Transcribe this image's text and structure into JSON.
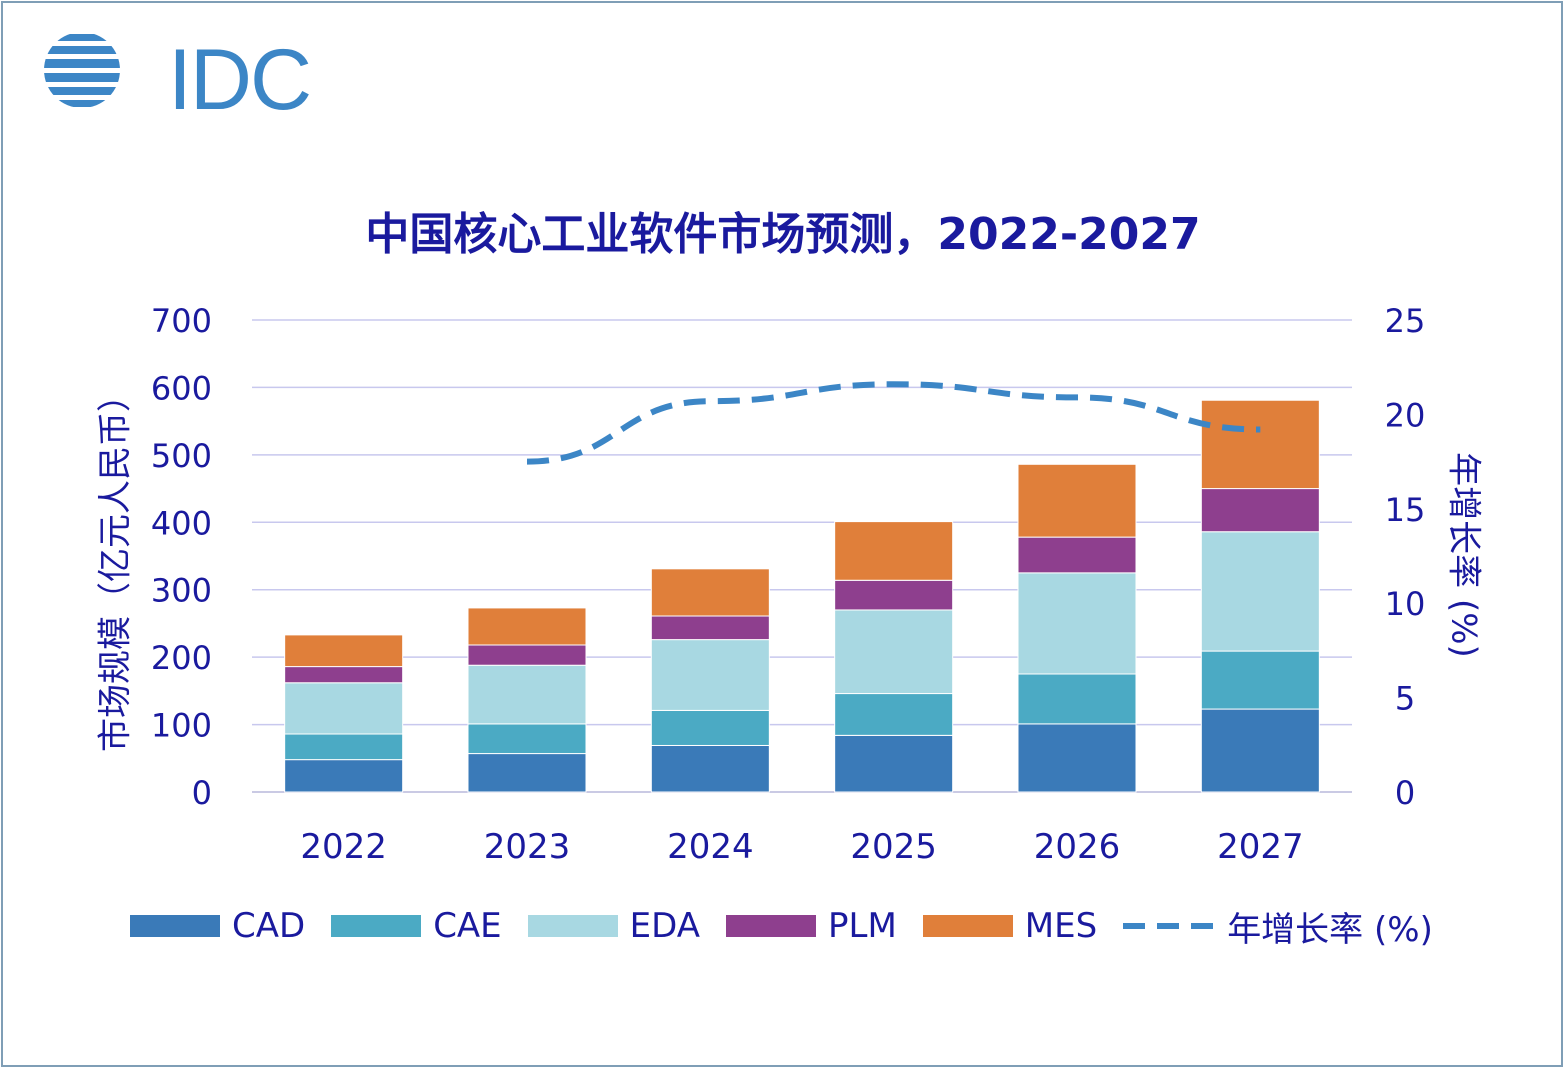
{
  "logo": {
    "text": "IDC"
  },
  "chart_data": {
    "type": "bar",
    "stacked": true,
    "title": "中国核心工业软件市场预测，2022-2027",
    "categories": [
      "2022",
      "2023",
      "2024",
      "2025",
      "2026",
      "2027"
    ],
    "ylabel": "市场规模（亿元人民币）",
    "ylim": [
      0,
      700
    ],
    "yticks": [
      "0",
      "100",
      "200",
      "300",
      "400",
      "500",
      "600",
      "700"
    ],
    "y2label": "年增长率 (%)",
    "y2lim": [
      0,
      25
    ],
    "y2ticks": [
      "0",
      "5",
      "10",
      "15",
      "20",
      "25"
    ],
    "grid": true,
    "legend_position": "bottom",
    "series": [
      {
        "name": "CAD",
        "color": "#3a7ab8",
        "values": [
          48,
          57,
          69,
          84,
          101,
          123
        ]
      },
      {
        "name": "CAE",
        "color": "#4baac4",
        "values": [
          38,
          44,
          52,
          62,
          74,
          86
        ]
      },
      {
        "name": "EDA",
        "color": "#a8d8e2",
        "values": [
          76,
          87,
          105,
          124,
          150,
          177
        ]
      },
      {
        "name": "PLM",
        "color": "#8e3f8e",
        "values": [
          24,
          30,
          35,
          44,
          53,
          64
        ]
      },
      {
        "name": "MES",
        "color": "#e07f3a",
        "values": [
          47,
          55,
          70,
          87,
          108,
          131
        ]
      }
    ],
    "line_series": {
      "name": "年增长率 (%)",
      "color": "#3c86c6",
      "axis": "right",
      "values": [
        null,
        17.5,
        20.7,
        21.6,
        20.9,
        19.2
      ]
    }
  }
}
